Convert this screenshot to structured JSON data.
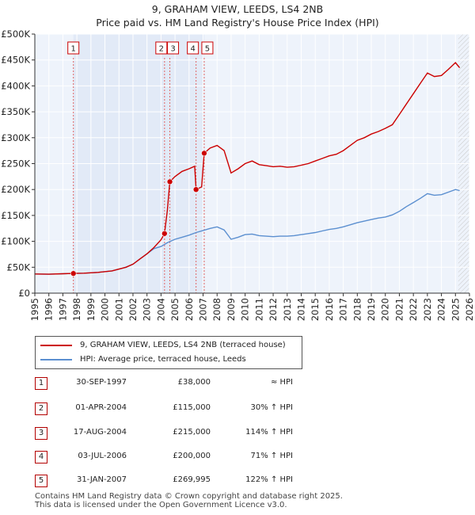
{
  "chart_data": {
    "type": "line",
    "title": "9, GRAHAM VIEW, LEEDS, LS4 2NB",
    "subtitle": "Price paid vs. HM Land Registry's House Price Index (HPI)",
    "x_range": [
      1995,
      2026
    ],
    "ylim": [
      0,
      500000
    ],
    "y_ticks": [
      0,
      50000,
      100000,
      150000,
      200000,
      250000,
      300000,
      350000,
      400000,
      450000,
      500000
    ],
    "y_tick_labels": [
      "£0",
      "£50K",
      "£100K",
      "£150K",
      "£200K",
      "£250K",
      "£300K",
      "£350K",
      "£400K",
      "£450K",
      "£500K"
    ],
    "x_ticks": [
      1995,
      1996,
      1997,
      1998,
      1999,
      2000,
      2001,
      2002,
      2003,
      2004,
      2005,
      2006,
      2007,
      2008,
      2009,
      2010,
      2011,
      2012,
      2013,
      2014,
      2015,
      2016,
      2017,
      2018,
      2019,
      2020,
      2021,
      2022,
      2023,
      2024,
      2025,
      2026
    ],
    "x_tick_labels": [
      "1995",
      "1996",
      "1997",
      "1998",
      "1999",
      "2000",
      "2001",
      "2002",
      "2003",
      "2004",
      "2005",
      "2006",
      "2007",
      "2008",
      "2009",
      "2010",
      "2011",
      "2012",
      "2013",
      "2014",
      "2015",
      "2016",
      "2017",
      "2018",
      "2019",
      "2020",
      "2021",
      "2022",
      "2023",
      "2024",
      "2025",
      "2026"
    ],
    "grid": true,
    "future_hatch_from": 2025.2,
    "series": [
      {
        "name": "9, GRAHAM VIEW, LEEDS, LS4 2NB (terraced house)",
        "color": "#cc0000",
        "points": [
          [
            1995.0,
            37000
          ],
          [
            1996.0,
            36500
          ],
          [
            1997.0,
            37500
          ],
          [
            1997.75,
            38000
          ],
          [
            1998.5,
            38500
          ],
          [
            1999.5,
            40000
          ],
          [
            2000.5,
            43000
          ],
          [
            2001.5,
            50000
          ],
          [
            2002.0,
            56000
          ],
          [
            2002.5,
            66000
          ],
          [
            2003.0,
            76000
          ],
          [
            2003.5,
            88000
          ],
          [
            2004.0,
            103000
          ],
          [
            2004.25,
            115000
          ],
          [
            2004.45,
            160000
          ],
          [
            2004.63,
            215000
          ],
          [
            2005.0,
            225000
          ],
          [
            2005.5,
            235000
          ],
          [
            2006.0,
            240000
          ],
          [
            2006.4,
            245000
          ],
          [
            2006.5,
            200000
          ],
          [
            2006.9,
            205000
          ],
          [
            2007.08,
            269995
          ],
          [
            2007.5,
            280000
          ],
          [
            2008.0,
            285000
          ],
          [
            2008.5,
            275000
          ],
          [
            2009.0,
            232000
          ],
          [
            2009.5,
            240000
          ],
          [
            2010.0,
            250000
          ],
          [
            2010.5,
            255000
          ],
          [
            2011.0,
            248000
          ],
          [
            2011.5,
            246000
          ],
          [
            2012.0,
            244000
          ],
          [
            2012.5,
            245000
          ],
          [
            2013.0,
            243000
          ],
          [
            2013.5,
            244000
          ],
          [
            2014.0,
            247000
          ],
          [
            2014.5,
            250000
          ],
          [
            2015.0,
            255000
          ],
          [
            2015.5,
            260000
          ],
          [
            2016.0,
            265000
          ],
          [
            2016.5,
            268000
          ],
          [
            2017.0,
            275000
          ],
          [
            2017.5,
            285000
          ],
          [
            2018.0,
            295000
          ],
          [
            2018.5,
            300000
          ],
          [
            2019.0,
            307000
          ],
          [
            2019.5,
            312000
          ],
          [
            2020.0,
            318000
          ],
          [
            2020.5,
            325000
          ],
          [
            2021.0,
            345000
          ],
          [
            2021.5,
            365000
          ],
          [
            2022.0,
            385000
          ],
          [
            2022.5,
            405000
          ],
          [
            2023.0,
            425000
          ],
          [
            2023.5,
            418000
          ],
          [
            2024.0,
            420000
          ],
          [
            2024.5,
            432000
          ],
          [
            2025.0,
            445000
          ],
          [
            2025.3,
            435000
          ]
        ]
      },
      {
        "name": "HPI: Average price, terraced house, Leeds",
        "color": "#5b8fd0",
        "points": [
          [
            1995.0,
            37000
          ],
          [
            1996.0,
            36500
          ],
          [
            1997.0,
            37500
          ],
          [
            1997.75,
            38000
          ],
          [
            1998.5,
            38500
          ],
          [
            1999.5,
            40000
          ],
          [
            2000.5,
            43000
          ],
          [
            2001.5,
            50000
          ],
          [
            2002.0,
            56000
          ],
          [
            2002.5,
            66000
          ],
          [
            2003.0,
            76000
          ],
          [
            2003.5,
            86000
          ],
          [
            2004.0,
            90000
          ],
          [
            2004.5,
            98000
          ],
          [
            2005.0,
            104000
          ],
          [
            2005.5,
            108000
          ],
          [
            2006.0,
            112000
          ],
          [
            2006.5,
            117000
          ],
          [
            2007.0,
            121000
          ],
          [
            2007.5,
            125000
          ],
          [
            2008.0,
            128000
          ],
          [
            2008.5,
            122000
          ],
          [
            2009.0,
            104000
          ],
          [
            2009.5,
            108000
          ],
          [
            2010.0,
            113000
          ],
          [
            2010.5,
            114000
          ],
          [
            2011.0,
            111000
          ],
          [
            2011.5,
            110000
          ],
          [
            2012.0,
            109000
          ],
          [
            2012.5,
            110000
          ],
          [
            2013.0,
            110000
          ],
          [
            2013.5,
            111000
          ],
          [
            2014.0,
            113000
          ],
          [
            2014.5,
            115000
          ],
          [
            2015.0,
            117000
          ],
          [
            2015.5,
            120000
          ],
          [
            2016.0,
            123000
          ],
          [
            2016.5,
            125000
          ],
          [
            2017.0,
            128000
          ],
          [
            2017.5,
            132000
          ],
          [
            2018.0,
            136000
          ],
          [
            2018.5,
            139000
          ],
          [
            2019.0,
            142000
          ],
          [
            2019.5,
            145000
          ],
          [
            2020.0,
            147000
          ],
          [
            2020.5,
            151000
          ],
          [
            2021.0,
            158000
          ],
          [
            2021.5,
            167000
          ],
          [
            2022.0,
            175000
          ],
          [
            2022.5,
            183000
          ],
          [
            2023.0,
            192000
          ],
          [
            2023.5,
            189000
          ],
          [
            2024.0,
            190000
          ],
          [
            2024.5,
            195000
          ],
          [
            2025.0,
            200000
          ],
          [
            2025.3,
            198000
          ]
        ]
      }
    ],
    "markers": [
      {
        "label": "1",
        "x": 1997.75,
        "y": 38000
      },
      {
        "label": "2",
        "x": 2004.25,
        "y": 115000
      },
      {
        "label": "3",
        "x": 2004.63,
        "y": 215000
      },
      {
        "label": "4",
        "x": 2006.5,
        "y": 200000
      },
      {
        "label": "5",
        "x": 2007.08,
        "y": 269995
      }
    ]
  },
  "legend": {
    "property_label": "9, GRAHAM VIEW, LEEDS, LS4 2NB (terraced house)",
    "hpi_label": "HPI: Average price, terraced house, Leeds"
  },
  "sales": [
    {
      "num": "1",
      "date": "30-SEP-1997",
      "price": "£38,000",
      "hpi": "≈ HPI"
    },
    {
      "num": "2",
      "date": "01-APR-2004",
      "price": "£115,000",
      "hpi": "30% ↑ HPI"
    },
    {
      "num": "3",
      "date": "17-AUG-2004",
      "price": "£215,000",
      "hpi": "114% ↑ HPI"
    },
    {
      "num": "4",
      "date": "03-JUL-2006",
      "price": "£200,000",
      "hpi": "71% ↑ HPI"
    },
    {
      "num": "5",
      "date": "31-JAN-2007",
      "price": "£269,995",
      "hpi": "122% ↑ HPI"
    }
  ],
  "footer": {
    "line1": "Contains HM Land Registry data © Crown copyright and database right 2025.",
    "line2": "This data is licensed under the Open Government Licence v3.0."
  }
}
